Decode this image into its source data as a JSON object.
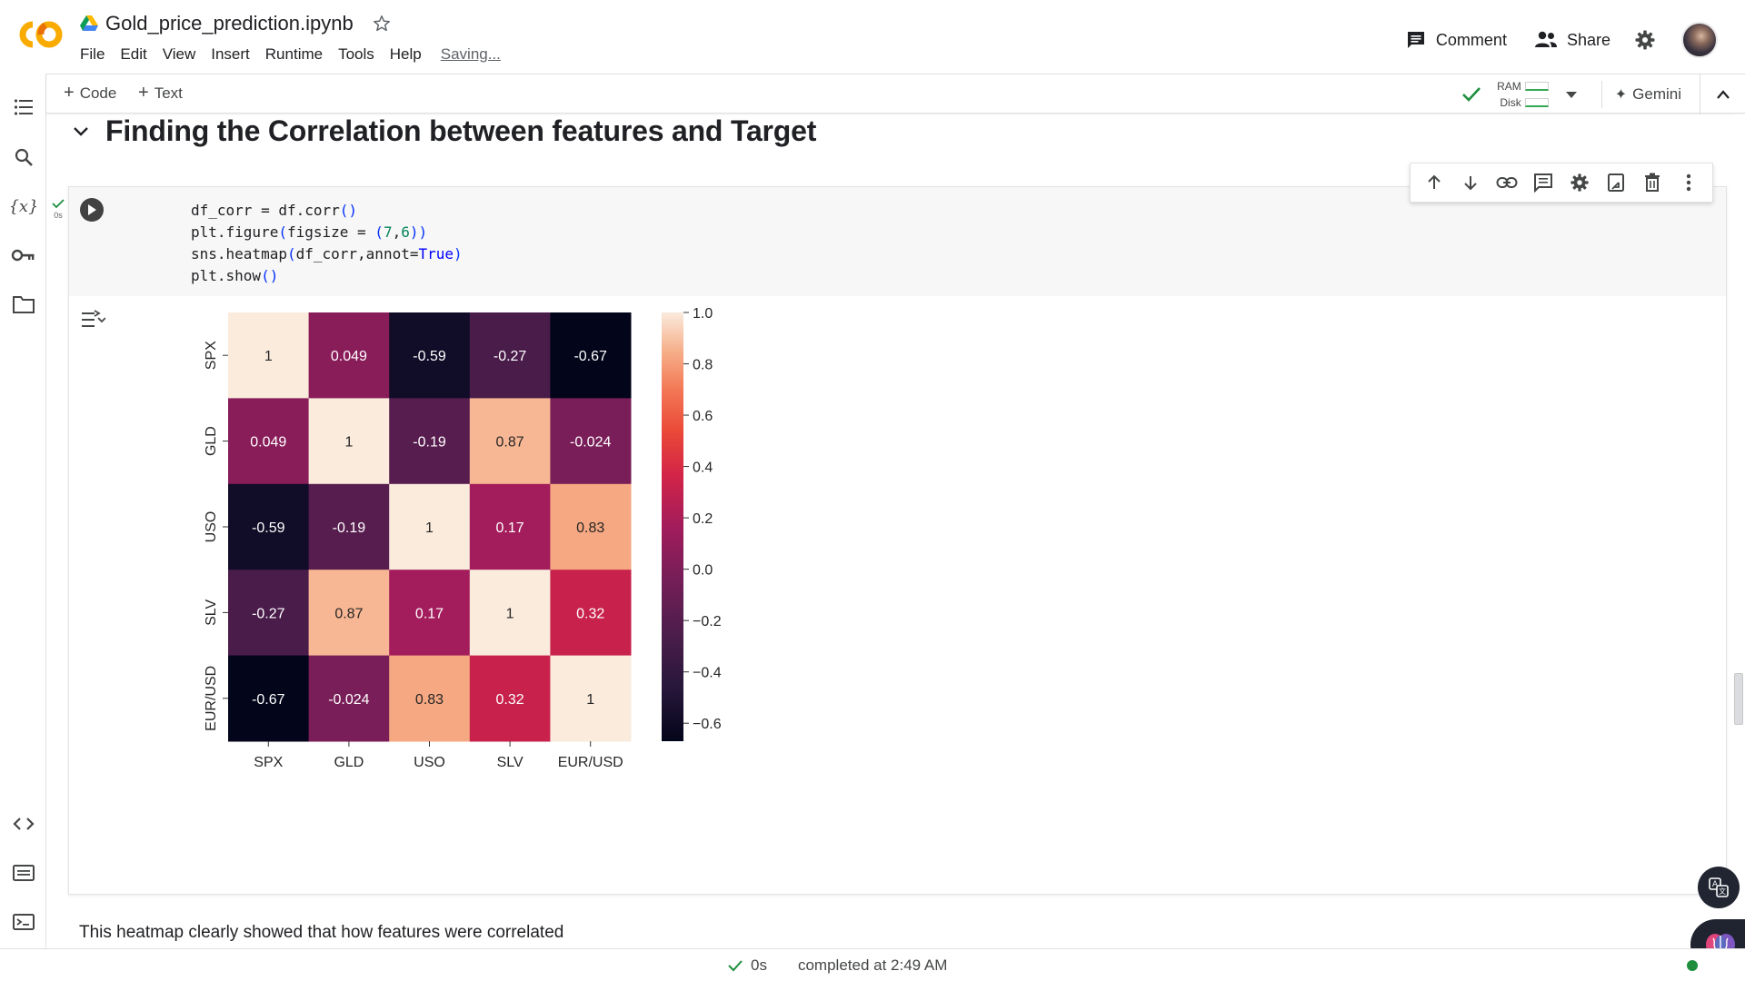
{
  "app": {
    "notebook_title": "Gold_price_prediction.ipynb",
    "menus": [
      "File",
      "Edit",
      "View",
      "Insert",
      "Runtime",
      "Tools",
      "Help"
    ],
    "save_status": "Saving..."
  },
  "header_actions": {
    "comment_label": "Comment",
    "share_label": "Share"
  },
  "toolbar": {
    "add_code_label": "Code",
    "add_text_label": "Text",
    "ram_label": "RAM",
    "disk_label": "Disk",
    "gemini_label": "Gemini"
  },
  "section": {
    "title": "Finding the Correlation between features and Target"
  },
  "cell": {
    "exec_time": "0s",
    "code_lines": [
      "df_corr = df.corr()",
      "plt.figure(figsize = (7,6))",
      "sns.heatmap(df_corr,annot=True)",
      "plt.show()"
    ]
  },
  "chart_data": {
    "type": "heatmap",
    "title": "",
    "xlabel": "",
    "ylabel": "",
    "x_categories": [
      "SPX",
      "GLD",
      "USO",
      "SLV",
      "EUR/USD"
    ],
    "y_categories": [
      "SPX",
      "GLD",
      "USO",
      "SLV",
      "EUR/USD"
    ],
    "values": [
      [
        1,
        0.049,
        -0.59,
        -0.27,
        -0.67
      ],
      [
        0.049,
        1,
        -0.19,
        0.87,
        -0.024
      ],
      [
        -0.59,
        -0.19,
        1,
        0.17,
        0.83
      ],
      [
        -0.27,
        0.87,
        0.17,
        1,
        0.32
      ],
      [
        -0.67,
        -0.024,
        0.83,
        0.32,
        1
      ]
    ],
    "annotations": [
      [
        "1",
        "0.049",
        "-0.59",
        "-0.27",
        "-0.67"
      ],
      [
        "0.049",
        "1",
        "-0.19",
        "0.87",
        "-0.024"
      ],
      [
        "-0.59",
        "-0.19",
        "1",
        "0.17",
        "0.83"
      ],
      [
        "-0.27",
        "0.87",
        "0.17",
        "1",
        "0.32"
      ],
      [
        "-0.67",
        "-0.024",
        "0.83",
        "0.32",
        "1"
      ]
    ],
    "colormap": "rocket",
    "colorbar_range": [
      -0.67,
      1.0
    ],
    "colorbar_ticks": [
      1.0,
      0.8,
      0.6,
      0.4,
      0.2,
      0.0,
      -0.2,
      -0.4,
      -0.6
    ],
    "colorbar_tick_labels": [
      "1.0",
      "0.8",
      "0.6",
      "0.4",
      "0.2",
      "0.0",
      "−0.2",
      "−0.4",
      "−0.6"
    ]
  },
  "markdown": {
    "text": "This heatmap clearly showed that how features were correlated"
  },
  "status_bar": {
    "elapsed": "0s",
    "completed": "completed at 2:49 AM"
  },
  "colors": {
    "brand_orange": "#F9AB00",
    "success_green": "#1e8e3e",
    "run_button": "#424242"
  }
}
